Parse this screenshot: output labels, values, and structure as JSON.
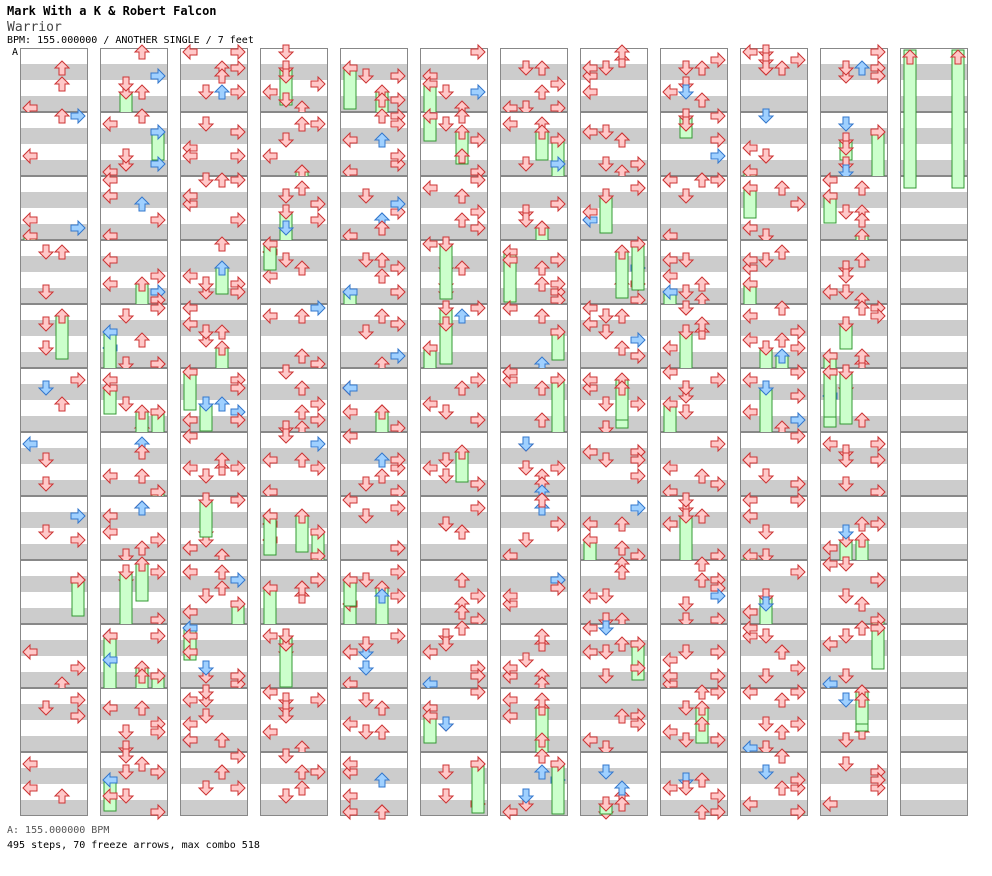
{
  "header": {
    "artist": "Mark With a K & Robert Falcon",
    "title": "Warrior",
    "info": "BPM: 155.000000 / ANOTHER SINGLE / 7 feet"
  },
  "section_marker": "A",
  "footer": {
    "bpm_line": "A: 155.000000 BPM",
    "stats_line": "495 steps, 70 freeze arrows, max combo 518"
  },
  "chart_data": {
    "type": "step-chart",
    "bpm": 155.0,
    "difficulty": "ANOTHER SINGLE",
    "feet": 7,
    "steps": 495,
    "freeze_arrows": 70,
    "max_combo": 518,
    "columns": 12,
    "measures_per_column": 12,
    "lanes": [
      "left",
      "down",
      "up",
      "right"
    ]
  },
  "colors": {
    "arrow_fill": "#ffc8c8",
    "arrow_stroke": "#cc3333",
    "arrow_alt_fill": "#9fd0ff",
    "arrow_alt_stroke": "#3377cc",
    "freeze_fill": "#ccffcc",
    "freeze_stroke": "#339933",
    "stripe": "#cccccc",
    "border": "#888888"
  }
}
